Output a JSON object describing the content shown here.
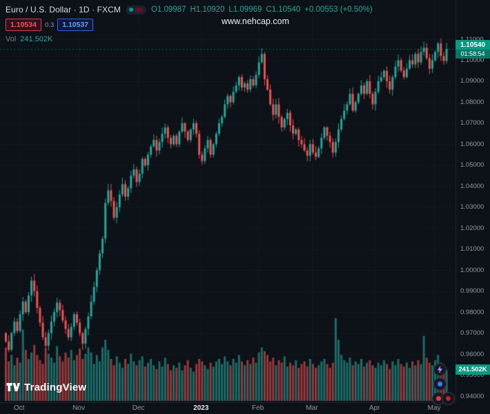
{
  "header": {
    "symbol_title": "Euro / U.S. Dollar · 1D · FXCM",
    "ohlc": {
      "o": "O1.09987",
      "h": "H1.10920",
      "l": "L1.09969",
      "c": "C1.10540",
      "change": "+0.00553 (+0.50%)"
    },
    "sell_price": "1.10534",
    "spread": "0.3",
    "buy_price": "1.10537",
    "vol_label": "Vol",
    "vol_value": "241.502K"
  },
  "watermark": "www.nehcap.com",
  "price_label": {
    "price": "1.10540",
    "countdown": "01:58:54"
  },
  "volume_axis_label": "241.502K",
  "logo": {
    "text": "TradingView"
  },
  "colors": {
    "up": "#26a69a",
    "down": "#ef5350",
    "label_bg": "#089981",
    "sell_red": "#f7525f",
    "buy_blue": "#5b9cf6",
    "axis_text": "#9598a1",
    "background": "#0d1118"
  },
  "chart_data": {
    "type": "candlestick",
    "title": "Euro / U.S. Dollar",
    "timeframe": "1D",
    "exchange": "FXCM",
    "ylim": [
      0.94,
      1.112
    ],
    "y_ticks": [
      1.11,
      1.1,
      1.09,
      1.08,
      1.07,
      1.06,
      1.05,
      1.04,
      1.03,
      1.02,
      1.01,
      1.0,
      0.99,
      0.98,
      0.97,
      0.96,
      0.95,
      0.94
    ],
    "x_labels": [
      {
        "label": "Oct",
        "i": 5
      },
      {
        "label": "Nov",
        "i": 26
      },
      {
        "label": "Dec",
        "i": 47
      },
      {
        "label": "2023",
        "i": 69,
        "major": true
      },
      {
        "label": "Feb",
        "i": 89
      },
      {
        "label": "Mar",
        "i": 108
      },
      {
        "label": "Apr",
        "i": 130
      },
      {
        "label": "May",
        "i": 151
      }
    ],
    "last": {
      "open": 1.09987,
      "high": 1.1092,
      "low": 1.09969,
      "close": 1.1054,
      "change": "+0.00553 (+0.50%)",
      "volume": "241.502K"
    },
    "closes": [
      0.966,
      0.962,
      0.97,
      0.9755,
      0.971,
      0.979,
      0.985,
      0.98,
      0.988,
      0.995,
      0.99,
      0.982,
      0.975,
      0.968,
      0.964,
      0.97,
      0.9755,
      0.98,
      0.9845,
      0.981,
      0.976,
      0.972,
      0.968,
      0.973,
      0.979,
      0.975,
      0.97,
      0.965,
      0.972,
      0.978,
      0.985,
      0.992,
      1.0,
      1.008,
      1.015,
      1.032,
      1.038,
      1.033,
      1.025,
      1.03,
      1.036,
      1.041,
      1.035,
      1.039,
      1.045,
      1.048,
      1.042,
      1.046,
      1.053,
      1.05,
      1.055,
      1.059,
      1.062,
      1.057,
      1.061,
      1.065,
      1.068,
      1.063,
      1.06,
      1.064,
      1.06,
      1.066,
      1.07,
      1.066,
      1.062,
      1.067,
      1.07,
      1.065,
      1.055,
      1.052,
      1.058,
      1.062,
      1.055,
      1.06,
      1.065,
      1.07,
      1.073,
      1.079,
      1.083,
      1.08,
      1.085,
      1.088,
      1.092,
      1.087,
      1.089,
      1.086,
      1.091,
      1.088,
      1.093,
      1.099,
      1.103,
      1.091,
      1.086,
      1.079,
      1.074,
      1.079,
      1.073,
      1.068,
      1.072,
      1.075,
      1.069,
      1.065,
      1.067,
      1.062,
      1.06,
      1.057,
      1.0545,
      1.06,
      1.056,
      1.054,
      1.058,
      1.063,
      1.068,
      1.064,
      1.061,
      1.056,
      1.061,
      1.067,
      1.072,
      1.076,
      1.079,
      1.084,
      1.076,
      1.08,
      1.084,
      1.088,
      1.084,
      1.09,
      1.084,
      1.079,
      1.085,
      1.09,
      1.092,
      1.095,
      1.09,
      1.086,
      1.092,
      1.097,
      1.1,
      1.095,
      1.092,
      1.096,
      1.1,
      1.098,
      1.103,
      1.099,
      1.104,
      1.106,
      1.101,
      1.096,
      1.1,
      1.104,
      1.108,
      1.102,
      1.0997,
      1.1054
    ],
    "volumes_k": [
      420,
      310,
      360,
      280,
      340,
      300,
      560,
      400,
      330,
      380,
      440,
      360,
      320,
      290,
      410,
      370,
      340,
      300,
      430,
      350,
      310,
      380,
      340,
      400,
      320,
      360,
      410,
      330,
      370,
      420,
      380,
      290,
      360,
      310,
      420,
      480,
      400,
      330,
      280,
      350,
      300,
      260,
      330,
      290,
      370,
      310,
      280,
      320,
      350,
      270,
      300,
      330,
      280,
      250,
      310,
      270,
      340,
      290,
      240,
      280,
      260,
      300,
      240,
      280,
      320,
      260,
      230,
      290,
      330,
      310,
      280,
      250,
      300,
      270,
      310,
      330,
      290,
      350,
      310,
      280,
      330,
      300,
      360,
      310,
      280,
      320,
      290,
      340,
      300,
      380,
      420,
      390,
      360,
      310,
      340,
      280,
      320,
      300,
      350,
      270,
      300,
      280,
      320,
      260,
      290,
      310,
      270,
      330,
      290,
      260,
      280,
      310,
      330,
      290,
      260,
      300,
      650,
      480,
      360,
      320,
      300,
      340,
      280,
      310,
      290,
      330,
      270,
      300,
      320,
      280,
      260,
      300,
      280,
      320,
      290,
      250,
      310,
      280,
      330,
      290,
      270,
      300,
      260,
      310,
      280,
      320,
      290,
      510,
      340,
      300,
      280,
      320,
      360,
      300,
      240,
      242
    ]
  }
}
